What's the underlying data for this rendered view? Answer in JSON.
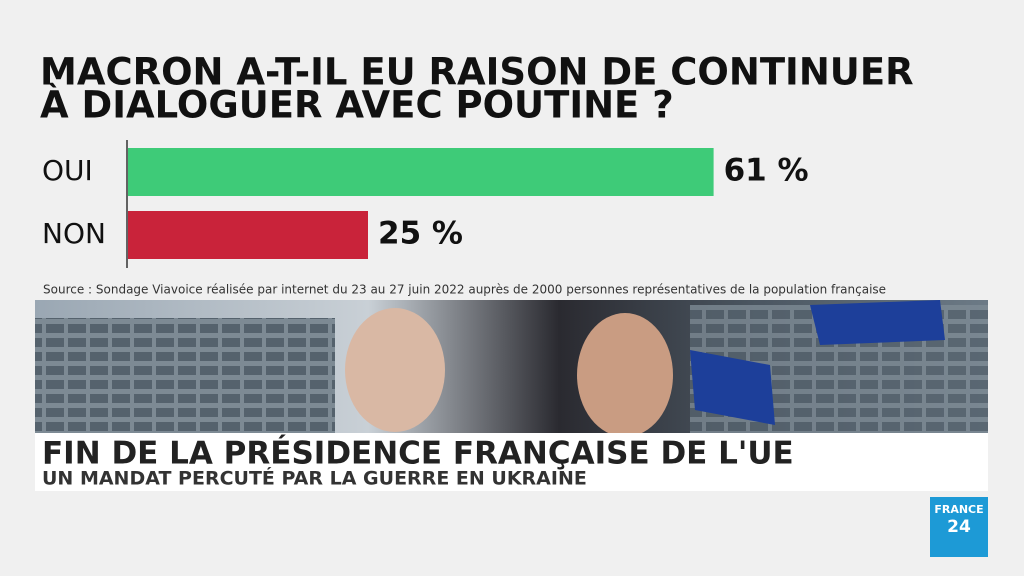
{
  "chart_data": {
    "type": "bar",
    "orientation": "horizontal",
    "title": [
      "MACRON A-T-IL EU RAISON DE CONTINUER",
      "À DIALOGUER AVEC POUTINE ?"
    ],
    "categories": [
      "OUI",
      "NON"
    ],
    "series": [
      {
        "values": [
          61,
          25
        ],
        "value_labels": [
          "61 %",
          "25 %"
        ],
        "colors": [
          "#3ecb78",
          "#c9233a"
        ]
      }
    ],
    "source": "Source : Sondage Viavoice réalisée par internet du 23 au 27 juin 2022 auprès de 2000 personnes représentatives de la population française"
  },
  "banner": {
    "headline": "FIN DE LA PRÉSIDENCE FRANÇAISE DE L'UE",
    "subheadline": "UN MANDAT PERCUTÉ PAR LA GUERRE EN UKRAINE"
  },
  "logo": {
    "line1": "FRANCE",
    "line2": "24"
  }
}
